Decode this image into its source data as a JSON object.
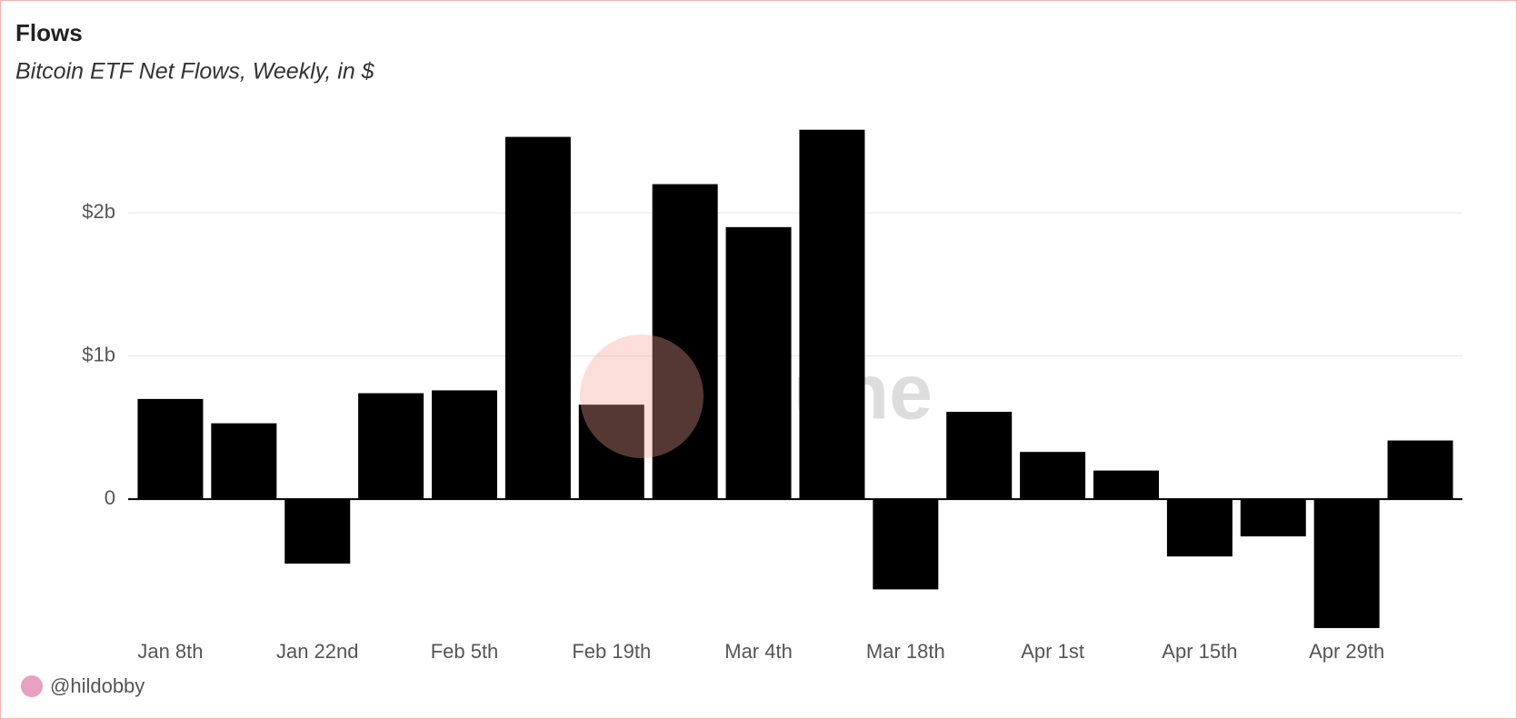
{
  "chart_data": {
    "type": "bar",
    "title": "Flows",
    "subtitle": "Bitcoin ETF Net Flows, Weekly, in $",
    "watermark": "Dune",
    "author": "@hildobby",
    "categories": [
      "Jan 8th",
      null,
      "Jan 22nd",
      null,
      "Feb 5th",
      null,
      "Feb 19th",
      null,
      "Mar 4th",
      null,
      "Mar 18th",
      null,
      "Apr 1st",
      null,
      "Apr 15th",
      null,
      "Apr 29th",
      null
    ],
    "values": [
      0.7,
      0.53,
      -0.45,
      0.74,
      0.76,
      2.53,
      0.66,
      2.2,
      1.9,
      2.58,
      -0.63,
      0.61,
      0.33,
      0.2,
      -0.4,
      -0.26,
      -0.9,
      0.41
    ],
    "color": "#000000",
    "ylim": [
      -1,
      2.65
    ],
    "yticks": [
      0,
      {
        "value": 1,
        "label": "$1b"
      },
      {
        "value": 2,
        "label": "$2b"
      }
    ],
    "grid": true
  }
}
